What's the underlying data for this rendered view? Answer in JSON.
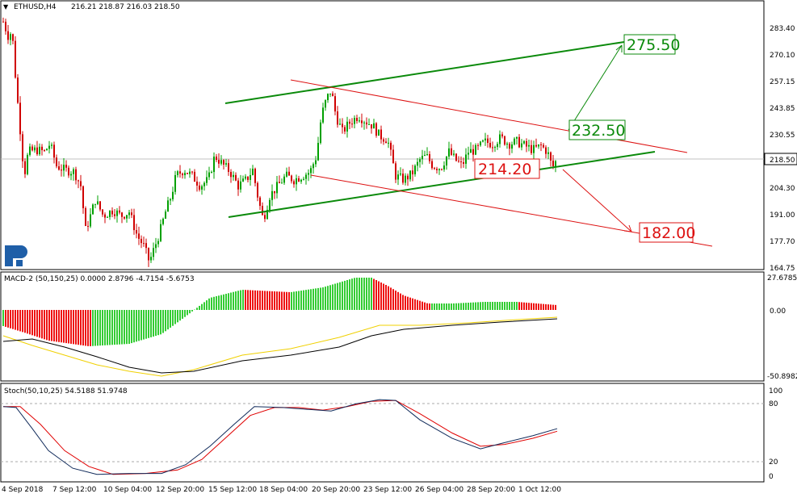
{
  "header": {
    "symbol": "ETHUSD,H4",
    "ohlc": "216.21 218.87 216.03 218.50"
  },
  "colors": {
    "bull": "#00a000",
    "bear": "#d00000",
    "channel": "#0b8a0b",
    "target_red": "#dd1111",
    "macd_bar_green": "#33cc33",
    "macd_bar_red": "#ee1111",
    "signal_yellow": "#f0d000",
    "stoch_blue": "#102a5a",
    "stoch_red": "#e00000"
  },
  "chart_data": [
    {
      "type": "candlestick",
      "name": "price",
      "y_ticks": [
        "283.40",
        "270.10",
        "257.15",
        "243.85",
        "230.55",
        "204.30",
        "191.00",
        "177.70",
        "164.75"
      ],
      "ylim": [
        164.75,
        283.4
      ],
      "current_price": "218.50",
      "x_ticks": [
        "4 Sep 2018",
        "7 Sep 12:00",
        "10 Sep 04:00",
        "12 Sep 20:00",
        "15 Sep 12:00",
        "18 Sep 04:00",
        "20 Sep 20:00",
        "23 Sep 12:00",
        "26 Sep 04:00",
        "28 Sep 20:00",
        "1 Oct 12:00"
      ],
      "annotations": [
        "275.50",
        "232.50",
        "214.20",
        "182.00"
      ],
      "key_levels": [
        {
          "label": "start",
          "value": 287
        },
        {
          "label": "low",
          "value": 167
        },
        {
          "label": "swing_high",
          "value": 253
        },
        {
          "label": "last",
          "value": 218.5
        }
      ]
    },
    {
      "type": "histogram",
      "name": "MACD-2",
      "title": "MACD-2 (50,150,25) 0.0000 2.8796 -4.7154 -5.6753",
      "y_ticks": [
        "27.6785",
        "0.00",
        "-50.8982"
      ],
      "ylim": [
        -50.8982,
        27.6785
      ]
    },
    {
      "type": "line",
      "name": "Stoch",
      "title": "Stoch(50,10,25) 54.5188 51.9748",
      "y_ticks": [
        "100",
        "80",
        "20",
        "0"
      ],
      "ylim": [
        0,
        100
      ],
      "series": [
        {
          "key": "main",
          "values": [
            80,
            5,
            5,
            80,
            75,
            88,
            40,
            55
          ]
        },
        {
          "key": "signal",
          "values": [
            80,
            8,
            5,
            78,
            75,
            87,
            42,
            52
          ]
        }
      ]
    }
  ]
}
